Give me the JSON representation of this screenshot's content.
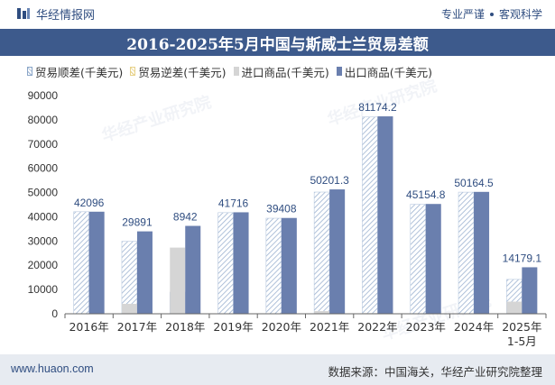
{
  "header": {
    "brand": "华经情报网",
    "slogan_1": "专业严谨",
    "slogan_2": "客观科学"
  },
  "watermarks": [
    "华经产业研究院",
    "华经产业研究院",
    "华经产业研究院"
  ],
  "footer": {
    "website": "www.huaon.com",
    "source": "数据来源：中国海关，华经产业研究院整理"
  },
  "colors": {
    "title_bg": "#3d5a8c",
    "surplus": "#9db3d1",
    "deficit": "#e6cf80",
    "import": "#d5d5d5",
    "export": "#6a7fae",
    "label": "#2f4d80"
  },
  "chart_data": {
    "type": "bar",
    "title": "2016-2025年5月中国与斯威士兰贸易差额",
    "categories": [
      "2016年",
      "2017年",
      "2018年",
      "2019年",
      "2020年",
      "2021年",
      "2022年",
      "2023年",
      "2024年",
      "2025年\n1-5月"
    ],
    "series": [
      {
        "name": "贸易顺差(千美元)",
        "style": "hatched",
        "values": [
          42096,
          29891,
          8942,
          41716,
          39408,
          50201.3,
          81174.2,
          45154.8,
          50164.5,
          14179.1
        ]
      },
      {
        "name": "贸易逆差(千美元)",
        "style": "hatched",
        "values": [
          0,
          0,
          0,
          0,
          0,
          0,
          0,
          0,
          0,
          0
        ]
      },
      {
        "name": "进口商品(千美元)",
        "values": [
          30,
          4100,
          27300,
          140,
          110,
          1100,
          260,
          130,
          120,
          5000
        ]
      },
      {
        "name": "出口商品(千美元)",
        "values": [
          42100,
          33990,
          36250,
          41860,
          39520,
          51300,
          81430,
          45290,
          50280,
          19180
        ]
      }
    ],
    "data_labels": [
      "42096",
      "29891",
      "8942",
      "41716",
      "39408",
      "50201.3",
      "81174.2",
      "45154.8",
      "50164.5",
      "14179.1"
    ],
    "yticks": [
      0,
      10000,
      20000,
      30000,
      40000,
      50000,
      60000,
      70000,
      80000,
      90000
    ],
    "ylim": [
      0,
      90000
    ],
    "xlabel": "",
    "ylabel": "",
    "legend": "top",
    "grid": false
  }
}
